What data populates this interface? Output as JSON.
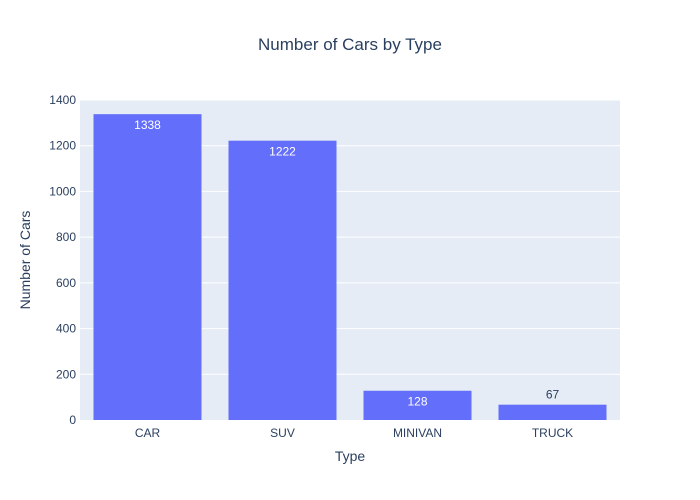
{
  "chart_data": {
    "type": "bar",
    "title": "Number of Cars by Type",
    "xlabel": "Type",
    "ylabel": "Number of Cars",
    "categories": [
      "CAR",
      "SUV",
      "MINIVAN",
      "TRUCK"
    ],
    "values": [
      1338,
      1222,
      128,
      67
    ],
    "data_labels": [
      "1338",
      "1222",
      "128",
      "67"
    ],
    "ylim": [
      0,
      1400
    ],
    "yticks": [
      0,
      200,
      400,
      600,
      800,
      1000,
      1200,
      1400
    ],
    "ytick_labels": [
      "0",
      "200",
      "400",
      "600",
      "800",
      "1000",
      "1200",
      "1400"
    ],
    "grid": true,
    "colors": {
      "bar": "#636efa",
      "plot_background": "#e5ecf6",
      "gridline": "#ffffff",
      "text": "#2a3f5f",
      "label_inside": "#ffffff"
    }
  }
}
